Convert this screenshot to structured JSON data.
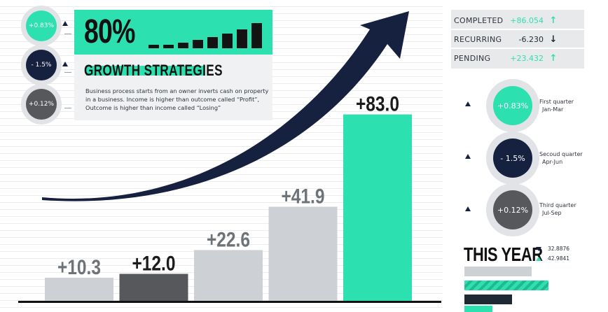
{
  "colors": {
    "accent": "#2de0b0",
    "navy": "#16213f",
    "dark_gray": "#56585b",
    "light_gray": "#cdd0d4",
    "up_green": "#2de0b0",
    "down_black": "#1f2933"
  },
  "left_kpis": [
    {
      "value": "+0.83%",
      "color": "#2de0b0"
    },
    {
      "value": "- 1.5%",
      "color": "#16213f"
    },
    {
      "value": "+0.12%",
      "color": "#56585b"
    }
  ],
  "card": {
    "headline": "80%",
    "title": "GROWTH STRATEGIES",
    "description": "Business process starts from an owner inverts cash on property in a business. Income is higher than outcome called “Profit”, Outcome is higher than income called “Losing”",
    "mini_bars": [
      5,
      5,
      8,
      12,
      16,
      21,
      27,
      36
    ]
  },
  "chart_data": {
    "type": "bar",
    "categories": [
      "",
      "",
      "",
      "",
      ""
    ],
    "values": [
      10.3,
      12.0,
      22.6,
      41.9,
      83.0
    ],
    "labels": [
      "+10.3",
      "+12.0",
      "+22.6",
      "+41.9",
      "+83.0"
    ],
    "colors": [
      "#cdd0d4",
      "#56585b",
      "#cdd0d4",
      "#cdd0d4",
      "#2de0b0"
    ],
    "title": "",
    "xlabel": "",
    "ylabel": "",
    "ylim": [
      0,
      90
    ],
    "trend_arrow": "up"
  },
  "status": [
    {
      "label": "COMPLETED",
      "value": "+86.054",
      "arrow": "↑",
      "arrow_color": "#2de0b0",
      "value_color": "#2de0b0"
    },
    {
      "label": "RECURRING",
      "value": "-6.230",
      "arrow": "↓",
      "arrow_color": "#1f2933",
      "value_color": "#1f2933"
    },
    {
      "label": "PENDING",
      "value": "+23.432",
      "arrow": "↑",
      "arrow_color": "#2de0b0",
      "value_color": "#2de0b0"
    }
  ],
  "quarters": [
    {
      "value": "+0.83%",
      "name": "First quarter",
      "period": "Jan-Mar",
      "color": "#2de0b0"
    },
    {
      "value": "- 1.5%",
      "name": "Secoud quarter",
      "period": "Apr-Jun",
      "color": "#16213f"
    },
    {
      "value": "+0.12%",
      "name": "Third quarter",
      "period": "Jul-Sep",
      "color": "#56585b"
    }
  ],
  "this_year": {
    "title": "THIS YEAR",
    "values": [
      "32.8876",
      "42.9841"
    ],
    "value_icons": [
      "triangle-down-icon",
      "triangle-up-icon"
    ]
  }
}
